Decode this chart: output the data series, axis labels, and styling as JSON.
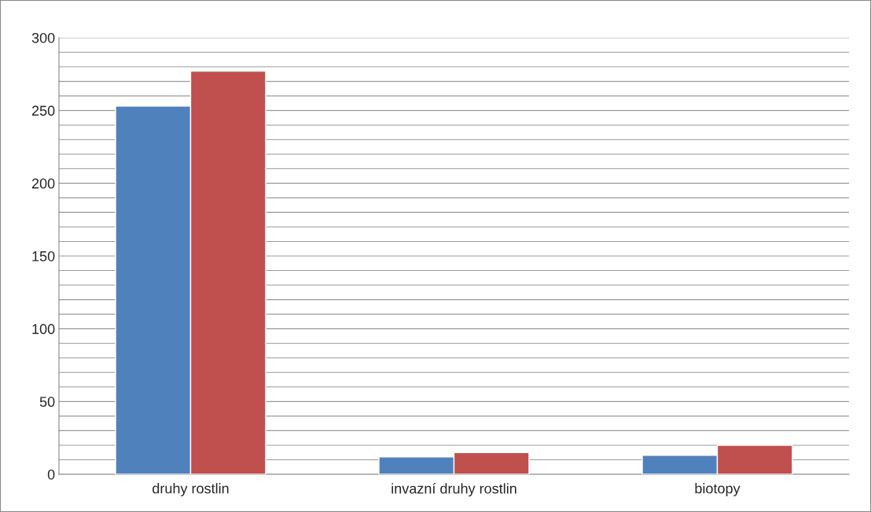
{
  "chart_data": {
    "type": "bar",
    "categories": [
      "druhy rostlin",
      "invazní druhy rostlin",
      "biotopy"
    ],
    "series": [
      {
        "color": "#4f81bd",
        "values": [
          253,
          12,
          13
        ]
      },
      {
        "color": "#c0504d",
        "values": [
          277,
          15,
          20
        ]
      }
    ],
    "ylim": [
      0,
      300
    ],
    "yticks": [
      0,
      {
        "value": 10,
        "label": null
      },
      {
        "value": 20,
        "label": null
      },
      {
        "value": 30,
        "label": null
      },
      {
        "value": 40,
        "label": null
      },
      50,
      {
        "value": 60,
        "label": null
      },
      {
        "value": 70,
        "label": null
      },
      {
        "value": 80,
        "label": null
      },
      {
        "value": 90,
        "label": null
      },
      100,
      {
        "value": 110,
        "label": null
      },
      {
        "value": 120,
        "label": null
      },
      {
        "value": 130,
        "label": null
      },
      {
        "value": 140,
        "label": null
      },
      150,
      {
        "value": 160,
        "label": null
      },
      {
        "value": 170,
        "label": null
      },
      {
        "value": 180,
        "label": null
      },
      {
        "value": 190,
        "label": null
      },
      200,
      {
        "value": 210,
        "label": null
      },
      {
        "value": 220,
        "label": null
      },
      {
        "value": 230,
        "label": null
      },
      {
        "value": 240,
        "label": null
      },
      250,
      {
        "value": 260,
        "label": null
      },
      {
        "value": 270,
        "label": null
      },
      {
        "value": 280,
        "label": null
      },
      {
        "value": 290,
        "label": null
      },
      300
    ],
    "grid": "y"
  }
}
